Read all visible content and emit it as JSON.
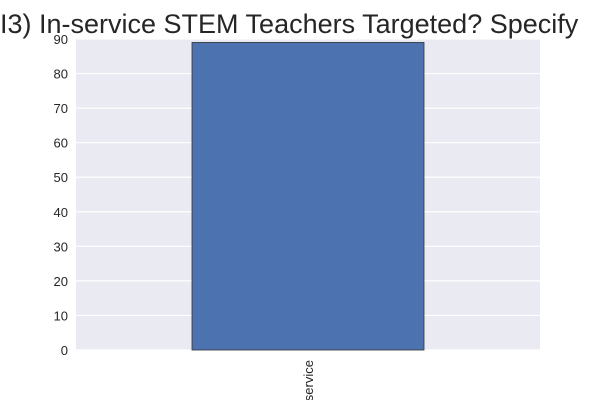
{
  "chart_data": {
    "type": "bar",
    "title": "I3) In-service STEM Teachers Targeted? Specify",
    "categories": [
      "In-service"
    ],
    "values": [
      89
    ],
    "ylim": [
      0,
      90
    ],
    "yticks": [
      0,
      10,
      20,
      30,
      40,
      50,
      60,
      70,
      80,
      90
    ],
    "xlabel": "",
    "ylabel": "",
    "grid": true,
    "legend": "none",
    "colors": {
      "background": "#EAEAF2",
      "bar": "#4C72B0",
      "bar_edge": "#333333",
      "grid": "#FFFFFF",
      "text": "#262626"
    }
  }
}
